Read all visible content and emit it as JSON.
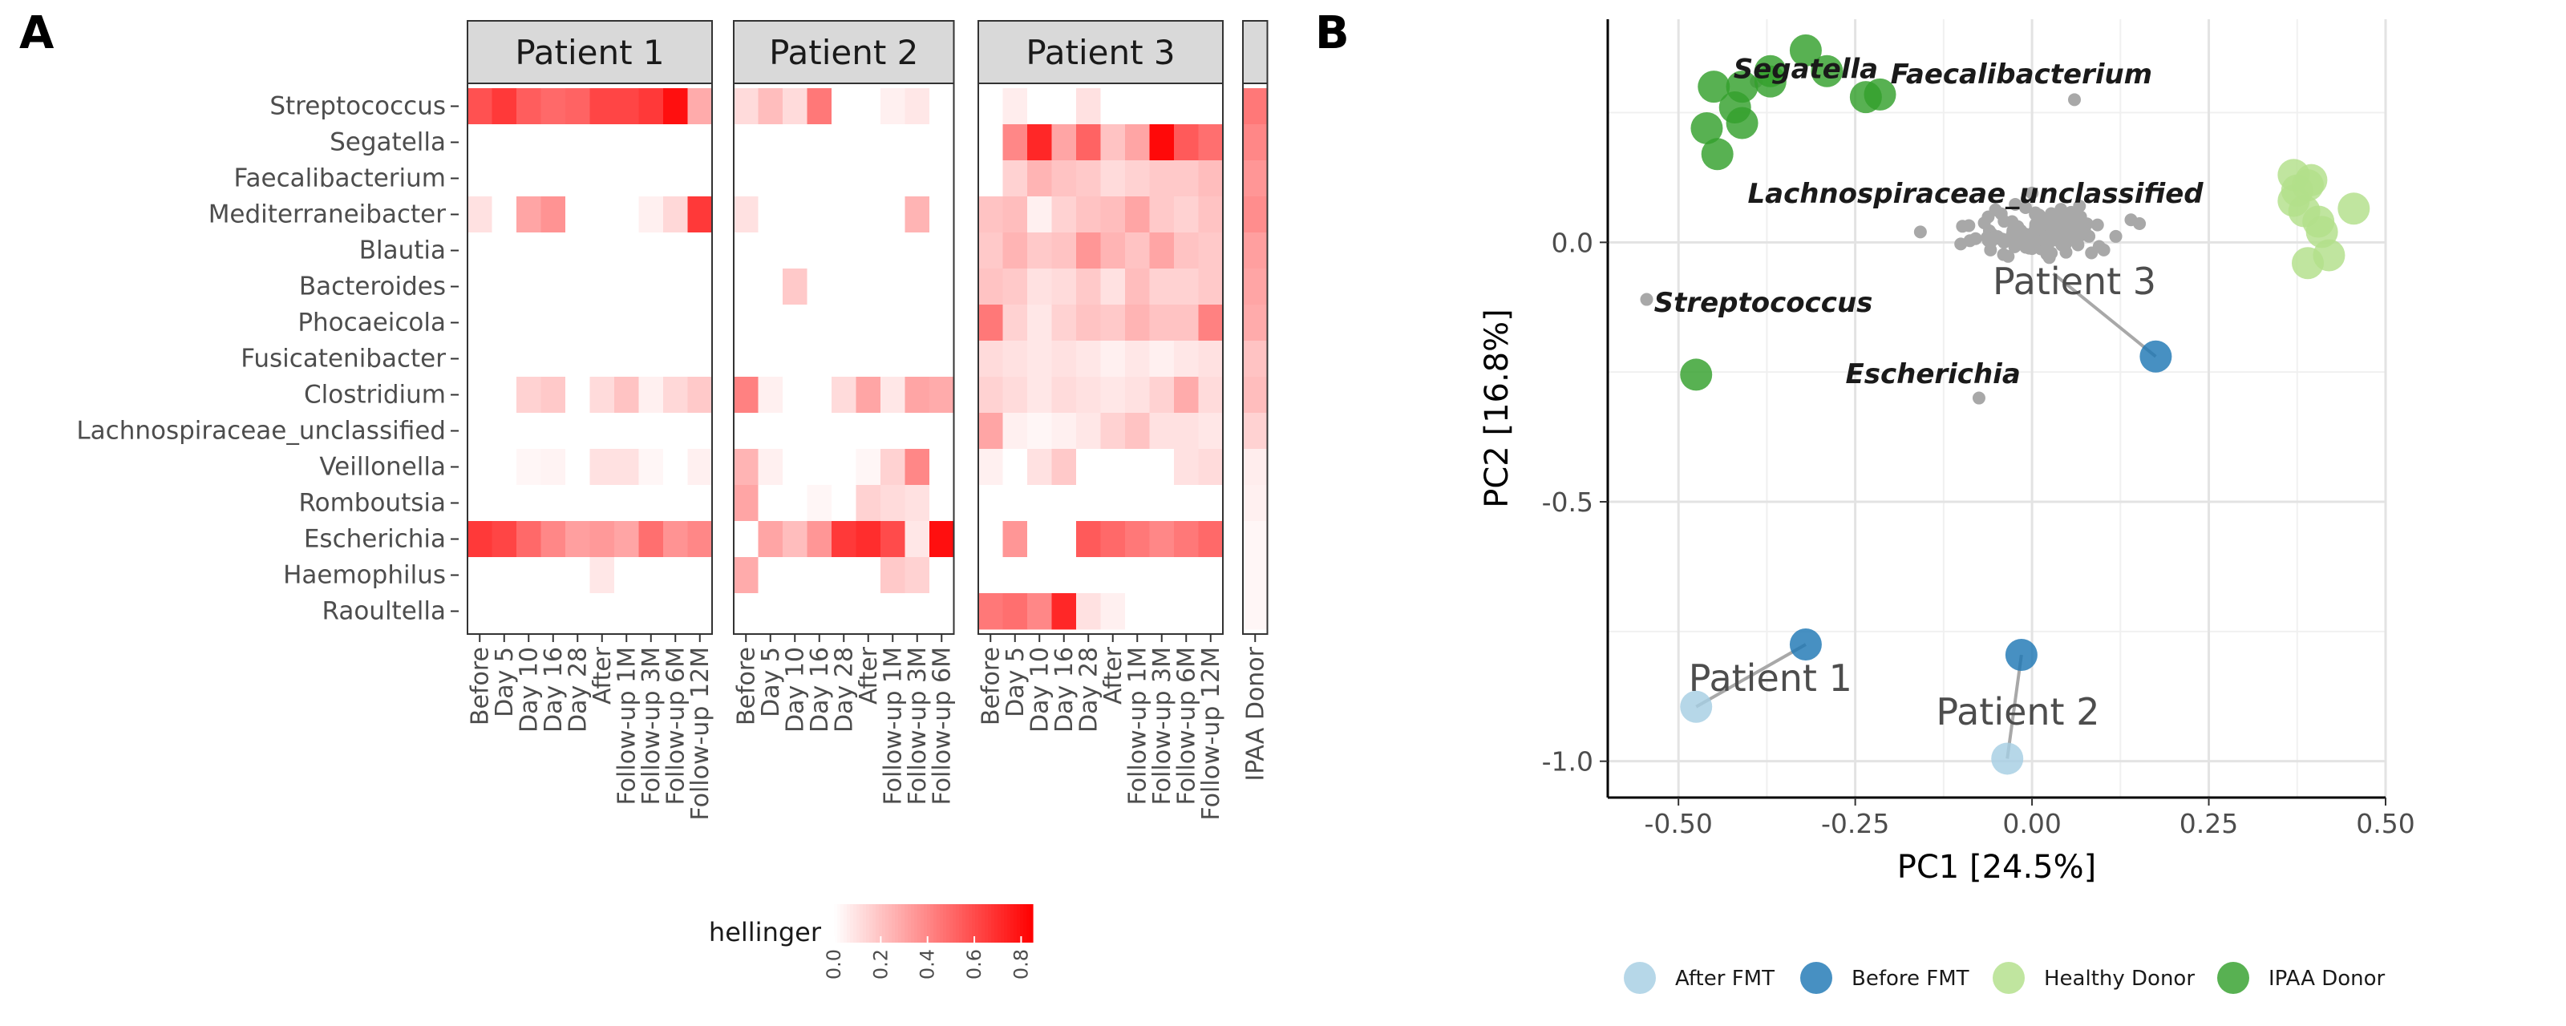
{
  "panel_labels": {
    "a": "A",
    "b": "B"
  },
  "chart_data": [
    {
      "type": "heatmap",
      "taxa": [
        "Streptococcus",
        "Segatella",
        "Faecalibacterium",
        "Mediterraneibacter",
        "Blautia",
        "Bacteroides",
        "Phocaeicola",
        "Fusicatenibacter",
        "Clostridium",
        "Lachnospiraceae_unclassified",
        "Veillonella",
        "Romboutsia",
        "Escherichia",
        "Haemophilus",
        "Raoultella"
      ],
      "facets": [
        {
          "name": "Patient 1",
          "samples": [
            "Before",
            "Day 5",
            "Day 10",
            "Day 16",
            "Day 28",
            "After",
            "Follow-up 1M",
            "Follow-up 3M",
            "Follow-up 6M",
            "Follow-up 12M"
          ],
          "values": [
            [
              0.58,
              0.66,
              0.54,
              0.5,
              0.52,
              0.62,
              0.62,
              0.66,
              0.8,
              0.28
            ],
            [
              0,
              0,
              0,
              0,
              0,
              0,
              0,
              0,
              0,
              0
            ],
            [
              0,
              0,
              0,
              0,
              0,
              0,
              0,
              0,
              0,
              0
            ],
            [
              0.1,
              0,
              0.3,
              0.36,
              0,
              0,
              0,
              0.05,
              0.13,
              0.66
            ],
            [
              0,
              0,
              0,
              0,
              0,
              0,
              0,
              0,
              0,
              0
            ],
            [
              0,
              0,
              0,
              0,
              0,
              0,
              0,
              0,
              0,
              0
            ],
            [
              0,
              0,
              0,
              0,
              0,
              0,
              0,
              0,
              0,
              0
            ],
            [
              0,
              0,
              0,
              0,
              0,
              0,
              0,
              0,
              0,
              0
            ],
            [
              0,
              0,
              0.15,
              0.18,
              0,
              0.12,
              0.2,
              0.05,
              0.13,
              0.18
            ],
            [
              0,
              0,
              0,
              0,
              0,
              0,
              0,
              0,
              0,
              0
            ],
            [
              0,
              0,
              0.03,
              0.04,
              0,
              0.1,
              0.1,
              0.03,
              0,
              0.05
            ],
            [
              0,
              0,
              0,
              0,
              0,
              0,
              0,
              0,
              0,
              0
            ],
            [
              0.66,
              0.62,
              0.5,
              0.4,
              0.32,
              0.34,
              0.3,
              0.48,
              0.36,
              0.4
            ],
            [
              0,
              0,
              0,
              0,
              0,
              0.08,
              0,
              0,
              0,
              0
            ],
            [
              0,
              0,
              0,
              0,
              0,
              0,
              0,
              0,
              0,
              0
            ]
          ]
        },
        {
          "name": "Patient 2",
          "samples": [
            "Before",
            "Day 5",
            "Day 10",
            "Day 16",
            "Day 28",
            "After",
            "Follow-up 1M",
            "Follow-up 3M",
            "Follow-up 6M"
          ],
          "values": [
            [
              0.12,
              0.22,
              0.12,
              0.45,
              0,
              0,
              0.05,
              0.08,
              0
            ],
            [
              0,
              0,
              0,
              0,
              0,
              0,
              0,
              0,
              0
            ],
            [
              0,
              0,
              0,
              0,
              0,
              0,
              0,
              0,
              0
            ],
            [
              0.1,
              0,
              0,
              0,
              0,
              0,
              0,
              0.25,
              0
            ],
            [
              0,
              0,
              0,
              0,
              0,
              0,
              0,
              0,
              0
            ],
            [
              0,
              0,
              0.18,
              0,
              0,
              0,
              0,
              0,
              0
            ],
            [
              0,
              0,
              0,
              0,
              0,
              0,
              0,
              0,
              0
            ],
            [
              0,
              0,
              0,
              0,
              0,
              0,
              0,
              0,
              0
            ],
            [
              0.42,
              0.05,
              0,
              0,
              0.12,
              0.3,
              0.08,
              0.3,
              0.28
            ],
            [
              0,
              0,
              0,
              0,
              0,
              0,
              0,
              0,
              0
            ],
            [
              0.25,
              0.05,
              0,
              0,
              0,
              0.03,
              0.15,
              0.4,
              0
            ],
            [
              0.3,
              0,
              0,
              0.03,
              0,
              0.15,
              0.12,
              0.1,
              0
            ],
            [
              0,
              0.3,
              0.22,
              0.35,
              0.66,
              0.7,
              0.6,
              0.08,
              0.8
            ],
            [
              0.28,
              0,
              0,
              0,
              0,
              0,
              0.18,
              0.15,
              0
            ],
            [
              0,
              0,
              0,
              0,
              0,
              0,
              0,
              0,
              0
            ]
          ]
        },
        {
          "name": "Patient 3",
          "samples": [
            "Before",
            "Day 5",
            "Day 10",
            "Day 16",
            "Day 28",
            "After",
            "Follow-up 1M",
            "Follow-up 3M",
            "Follow-up 6M",
            "Follow-up 12M"
          ],
          "values": [
            [
              0,
              0.06,
              0,
              0,
              0.1,
              0,
              0,
              0,
              0,
              0
            ],
            [
              0,
              0.4,
              0.72,
              0.3,
              0.52,
              0.2,
              0.3,
              0.82,
              0.55,
              0.48
            ],
            [
              0,
              0.15,
              0.25,
              0.2,
              0.18,
              0.12,
              0.15,
              0.18,
              0.18,
              0.22
            ],
            [
              0.2,
              0.22,
              0.05,
              0.15,
              0.2,
              0.22,
              0.3,
              0.18,
              0.15,
              0.2
            ],
            [
              0.18,
              0.25,
              0.18,
              0.2,
              0.35,
              0.25,
              0.2,
              0.3,
              0.2,
              0.18
            ],
            [
              0.2,
              0.18,
              0.1,
              0.12,
              0.18,
              0.1,
              0.22,
              0.15,
              0.15,
              0.18
            ],
            [
              0.45,
              0.15,
              0.08,
              0.15,
              0.2,
              0.18,
              0.25,
              0.2,
              0.2,
              0.42
            ],
            [
              0.12,
              0.1,
              0.08,
              0.1,
              0.08,
              0.05,
              0.08,
              0.05,
              0.08,
              0.1
            ],
            [
              0.15,
              0.12,
              0.08,
              0.12,
              0.1,
              0.08,
              0.1,
              0.15,
              0.28,
              0.12
            ],
            [
              0.3,
              0.05,
              0.03,
              0.05,
              0.08,
              0.15,
              0.2,
              0.1,
              0.1,
              0.08
            ],
            [
              0.05,
              0,
              0.1,
              0.18,
              0,
              0,
              0,
              0,
              0.1,
              0.12
            ],
            [
              0,
              0,
              0,
              0,
              0,
              0,
              0,
              0,
              0,
              0
            ],
            [
              0,
              0.35,
              0,
              0,
              0.55,
              0.5,
              0.45,
              0.4,
              0.45,
              0.5
            ],
            [
              0,
              0,
              0,
              0,
              0,
              0,
              0,
              0,
              0,
              0
            ],
            [
              0.45,
              0.48,
              0.4,
              0.72,
              0.1,
              0.05,
              0,
              0,
              0,
              0
            ]
          ]
        },
        {
          "name": "",
          "samples": [
            "IPAA Donor"
          ],
          "values": [
            [
              0.45
            ],
            [
              0.4
            ],
            [
              0.35
            ],
            [
              0.38
            ],
            [
              0.32
            ],
            [
              0.3
            ],
            [
              0.28
            ],
            [
              0.2
            ],
            [
              0.22
            ],
            [
              0.15
            ],
            [
              0.06
            ],
            [
              0.05
            ],
            [
              0.03
            ],
            [
              0.03
            ],
            [
              0.03
            ]
          ]
        }
      ],
      "legend": {
        "title": "hellinger",
        "range": [
          0,
          0.85
        ],
        "ticks": [
          "0.0",
          "0.2",
          "0.4",
          "0.6",
          "0.8"
        ],
        "tick_values": [
          0,
          0.2,
          0.4,
          0.6,
          0.8
        ]
      },
      "colors": {
        "low": "#ffffff",
        "high": "#ff0000",
        "strip_fill": "#d9d9d9",
        "border": "#333333"
      }
    },
    {
      "type": "scatter",
      "xlabel": "PC1 [24.5%]",
      "ylabel": "PC2 [16.8%]",
      "xlim": [
        -0.6,
        0.5
      ],
      "ylim": [
        -1.07,
        0.43
      ],
      "xticks": [
        -0.5,
        -0.25,
        0.0,
        0.25,
        0.5
      ],
      "xtick_labels": [
        "-0.50",
        "-0.25",
        "0.00",
        "0.25",
        "0.50"
      ],
      "yticks": [
        -1.0,
        -0.5,
        0.0
      ],
      "ytick_labels": [
        "-1.0",
        "-0.5",
        "0.0"
      ],
      "grid": true,
      "legend_position": "bottom",
      "groups": [
        {
          "name": "After FMT",
          "color": "#a6cee3"
        },
        {
          "name": "Before FMT",
          "color": "#1f78b4"
        },
        {
          "name": "Healthy Donor",
          "color": "#b2df8a"
        },
        {
          "name": "IPAA Donor",
          "color": "#33a02c"
        }
      ],
      "samples": [
        {
          "group": "IPAA Donor",
          "x": -0.45,
          "y": 0.3
        },
        {
          "group": "IPAA Donor",
          "x": -0.41,
          "y": 0.3
        },
        {
          "group": "IPAA Donor",
          "x": -0.37,
          "y": 0.31
        },
        {
          "group": "IPAA Donor",
          "x": -0.32,
          "y": 0.37
        },
        {
          "group": "IPAA Donor",
          "x": -0.29,
          "y": 0.33
        },
        {
          "group": "IPAA Donor",
          "x": -0.42,
          "y": 0.26
        },
        {
          "group": "IPAA Donor",
          "x": -0.37,
          "y": 0.33
        },
        {
          "group": "IPAA Donor",
          "x": -0.46,
          "y": 0.22
        },
        {
          "group": "IPAA Donor",
          "x": -0.445,
          "y": 0.17
        },
        {
          "group": "IPAA Donor",
          "x": -0.41,
          "y": 0.23
        },
        {
          "group": "IPAA Donor",
          "x": -0.235,
          "y": 0.28
        },
        {
          "group": "IPAA Donor",
          "x": -0.215,
          "y": 0.285
        },
        {
          "group": "IPAA Donor",
          "x": -0.475,
          "y": -0.255
        },
        {
          "group": "Healthy Donor",
          "x": 0.37,
          "y": 0.13
        },
        {
          "group": "Healthy Donor",
          "x": 0.39,
          "y": 0.11
        },
        {
          "group": "Healthy Donor",
          "x": 0.37,
          "y": 0.08
        },
        {
          "group": "Healthy Donor",
          "x": 0.385,
          "y": 0.06
        },
        {
          "group": "Healthy Donor",
          "x": 0.405,
          "y": 0.04
        },
        {
          "group": "Healthy Donor",
          "x": 0.41,
          "y": 0.02
        },
        {
          "group": "Healthy Donor",
          "x": 0.455,
          "y": 0.065
        },
        {
          "group": "Healthy Donor",
          "x": 0.375,
          "y": 0.1
        },
        {
          "group": "Healthy Donor",
          "x": 0.42,
          "y": -0.025
        },
        {
          "group": "Healthy Donor",
          "x": 0.39,
          "y": -0.04
        },
        {
          "group": "Healthy Donor",
          "x": 0.395,
          "y": 0.12
        },
        {
          "group": "Before FMT",
          "x": -0.32,
          "y": -0.775
        },
        {
          "group": "Before FMT",
          "x": -0.015,
          "y": -0.795
        },
        {
          "group": "Before FMT",
          "x": 0.175,
          "y": -0.22
        },
        {
          "group": "After FMT",
          "x": -0.475,
          "y": -0.895
        },
        {
          "group": "After FMT",
          "x": -0.035,
          "y": -0.995
        }
      ],
      "patients": [
        {
          "label": "Patient 1",
          "from": [
            -0.32,
            -0.775
          ],
          "to": [
            -0.475,
            -0.895
          ],
          "label_at": [
            -0.37,
            -0.84
          ]
        },
        {
          "label": "Patient 2",
          "from": [
            -0.015,
            -0.795
          ],
          "to": [
            -0.035,
            -0.995
          ],
          "label_at": [
            -0.02,
            -0.905
          ]
        },
        {
          "label": "Patient 3",
          "from": [
            0.175,
            -0.22
          ],
          "to": [
            0.03,
            -0.06
          ],
          "label_at": [
            0.06,
            -0.075
          ]
        }
      ],
      "taxa_points": [
        {
          "x": -0.545,
          "y": -0.11,
          "label": "Streptococcus",
          "label_at": [
            -0.38,
            -0.115
          ]
        },
        {
          "x": -0.075,
          "y": -0.3,
          "label": "Escherichia",
          "label_at": [
            -0.14,
            -0.253
          ]
        },
        {
          "x": 0.06,
          "y": 0.275,
          "label": "Faecalibacterium",
          "label_at": [
            -0.015,
            0.325
          ]
        },
        {
          "x": -0.39,
          "y": 0.31,
          "label": "Segatella",
          "label_at": [
            -0.32,
            0.335
          ]
        },
        {
          "x": 0.0,
          "y": 0.095,
          "label": "Lachnospiraceae_unclassified",
          "label_at": [
            -0.08,
            0.095
          ]
        }
      ],
      "cloud_seed": 7
    }
  ]
}
